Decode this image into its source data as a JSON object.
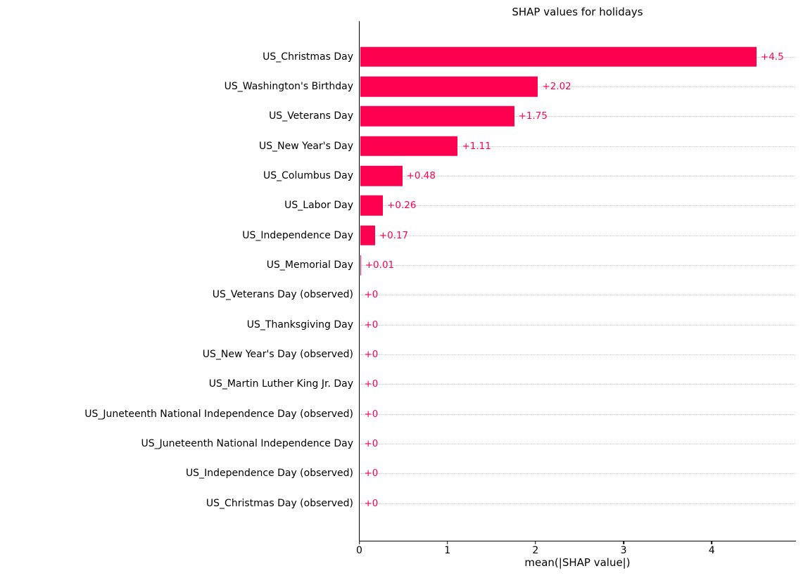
{
  "chart_data": {
    "type": "bar",
    "orientation": "horizontal",
    "title": "SHAP values for holidays",
    "xlabel": "mean(|SHAP value|)",
    "ylabel": "",
    "categories": [
      "US_Christmas Day",
      "US_Washington's Birthday",
      "US_Veterans Day",
      "US_New Year's Day",
      "US_Columbus Day",
      "US_Labor Day",
      "US_Independence Day",
      "US_Memorial Day",
      "US_Veterans Day (observed)",
      "US_Thanksgiving Day",
      "US_New Year's Day (observed)",
      "US_Martin Luther King Jr. Day",
      "US_Juneteenth National Independence Day (observed)",
      "US_Juneteenth National Independence Day",
      "US_Independence Day (observed)",
      "US_Christmas Day (observed)"
    ],
    "values": [
      4.5,
      2.02,
      1.75,
      1.11,
      0.48,
      0.26,
      0.17,
      0.01,
      0,
      0,
      0,
      0,
      0,
      0,
      0,
      0
    ],
    "value_labels": [
      "+4.5",
      "+2.02",
      "+1.75",
      "+1.11",
      "+0.48",
      "+0.26",
      "+0.17",
      "+0.01",
      "+0",
      "+0",
      "+0",
      "+0",
      "+0",
      "+0",
      "+0",
      "+0"
    ],
    "xticks": [
      0,
      1,
      2,
      3,
      4
    ],
    "xlim": [
      0,
      4.95
    ],
    "bar_color": "#ff0051",
    "value_label_color": "#ff0051",
    "grid": "horizontal dotted per-category",
    "gridline_color": "#c9c9c9",
    "legend": "none"
  }
}
